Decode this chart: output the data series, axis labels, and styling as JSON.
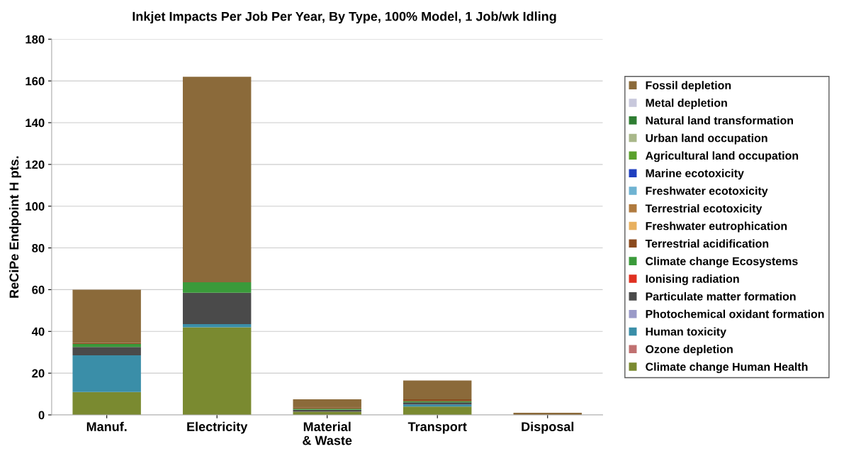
{
  "chart_data": {
    "type": "bar",
    "title": "Inkjet Impacts Per Job Per Year, By Type, 100% Model, 1 Job/wk Idling",
    "ylabel": "ReCiPe Endpoint H pts.",
    "categories": [
      "Manuf.",
      "Electricity",
      "Material\n& Waste",
      "Transport",
      "Disposal"
    ],
    "stacked": true,
    "ylim": [
      0,
      180
    ],
    "yticks": [
      0,
      20,
      40,
      60,
      80,
      100,
      120,
      140,
      160,
      180
    ],
    "grid": "y",
    "legend": "right",
    "series": [
      {
        "name": "Climate change Human Health",
        "color": "#7a8a30",
        "values": [
          11,
          42,
          1.5,
          4,
          0
        ]
      },
      {
        "name": "Ozone depletion",
        "color": "#c07070",
        "values": [
          0,
          0,
          0,
          0,
          0
        ]
      },
      {
        "name": "Human toxicity",
        "color": "#3a8ea8",
        "values": [
          17.5,
          1.5,
          0,
          1,
          0
        ]
      },
      {
        "name": "Photochemical oxidant formation",
        "color": "#9a9ac8",
        "values": [
          0,
          0,
          0,
          0,
          0
        ]
      },
      {
        "name": "Particulate matter formation",
        "color": "#4a4a4a",
        "values": [
          4,
          15,
          1,
          1,
          0
        ]
      },
      {
        "name": "Ionising radiation",
        "color": "#e03020",
        "values": [
          0,
          0,
          0,
          0,
          0
        ]
      },
      {
        "name": "Climate change Ecosystems",
        "color": "#3a9a3a",
        "values": [
          1.5,
          5,
          0.5,
          0.5,
          0
        ]
      },
      {
        "name": "Terrestrial acidification",
        "color": "#8b4a1e",
        "values": [
          0.5,
          0,
          0.5,
          1,
          0
        ]
      },
      {
        "name": "Freshwater eutrophication",
        "color": "#e8b060",
        "values": [
          0,
          0,
          0,
          0,
          0
        ]
      },
      {
        "name": "Terrestrial ecotoxicity",
        "color": "#b07a3e",
        "values": [
          0,
          0,
          0,
          0,
          0
        ]
      },
      {
        "name": "Freshwater ecotoxicity",
        "color": "#6fb3d2",
        "values": [
          0,
          0,
          0,
          0,
          0
        ]
      },
      {
        "name": "Marine ecotoxicity",
        "color": "#1f3fbf",
        "values": [
          0,
          0,
          0,
          0,
          0
        ]
      },
      {
        "name": "Agricultural land occupation",
        "color": "#5aa02c",
        "values": [
          0,
          0,
          0,
          0,
          0
        ]
      },
      {
        "name": "Urban land occupation",
        "color": "#a9b88a",
        "values": [
          0,
          0,
          0,
          0,
          0
        ]
      },
      {
        "name": "Natural land transformation",
        "color": "#2e7d32",
        "values": [
          0,
          0,
          0,
          0,
          0
        ]
      },
      {
        "name": "Metal depletion",
        "color": "#c8c8dc",
        "values": [
          0,
          0,
          0,
          0,
          0
        ]
      },
      {
        "name": "Fossil depletion",
        "color": "#8b6a3a",
        "values": [
          25.5,
          98.5,
          4,
          9,
          1
        ]
      }
    ]
  }
}
